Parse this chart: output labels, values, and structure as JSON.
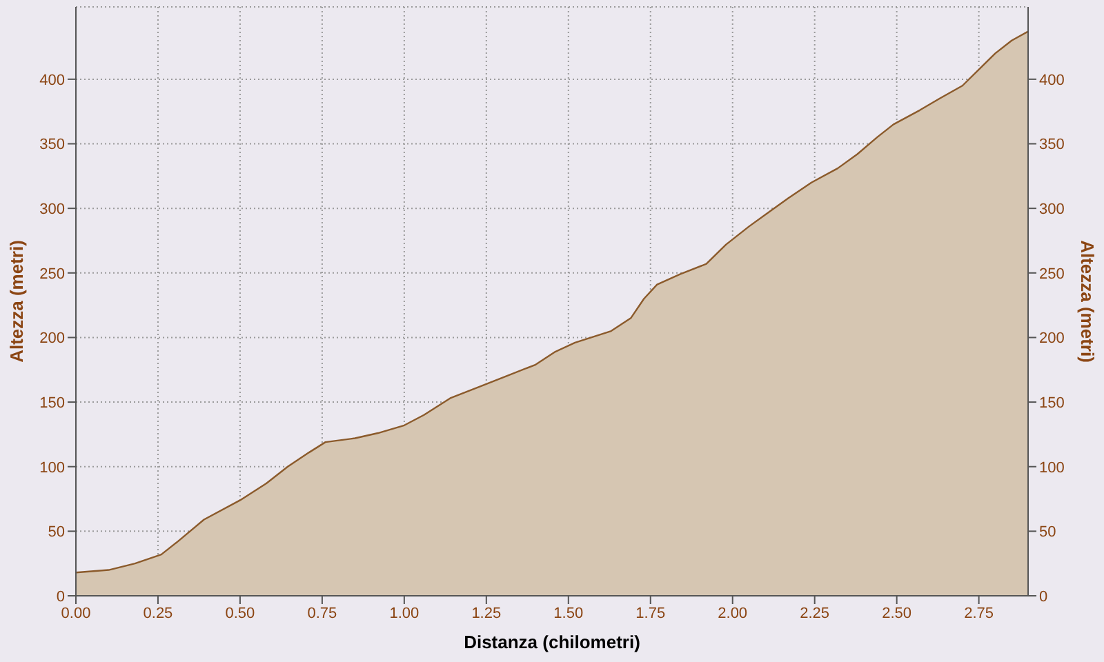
{
  "chart_data": {
    "type": "area",
    "xlabel": "Distanza (chilometri)",
    "ylabel": "Altezza (metri)",
    "y2label": "Altezza (metri)",
    "x": [
      0,
      0.1,
      0.18,
      0.26,
      0.31,
      0.39,
      0.5,
      0.58,
      0.645,
      0.71,
      0.76,
      0.85,
      0.92,
      1.0,
      1.06,
      1.14,
      1.23,
      1.31,
      1.4,
      1.46,
      1.52,
      1.63,
      1.69,
      1.73,
      1.77,
      1.84,
      1.92,
      1.98,
      2.05,
      2.11,
      2.17,
      2.24,
      2.32,
      2.38,
      2.44,
      2.49,
      2.57,
      2.63,
      2.7,
      2.76,
      2.8,
      2.85,
      2.9
    ],
    "series": [
      {
        "color": "#8b5a2b",
        "values": [
          18,
          20,
          25,
          32,
          42,
          59,
          74,
          87,
          100,
          111,
          119,
          122,
          126,
          132,
          140,
          153,
          162,
          170,
          179,
          189,
          196,
          205,
          215,
          230,
          241,
          249,
          257,
          272,
          286,
          297,
          308,
          320,
          331,
          342,
          355,
          365,
          376,
          385,
          395,
          410,
          420,
          430,
          437
        ]
      }
    ],
    "xlim": [
      0,
      2.9
    ],
    "xticks": [
      {
        "value": 0,
        "label": "0.00"
      },
      {
        "value": 0.25,
        "label": "0.25"
      },
      {
        "value": 0.5,
        "label": "0.50"
      },
      {
        "value": 0.75,
        "label": "0.75"
      },
      {
        "value": 1,
        "label": "1.00"
      },
      {
        "value": 1.25,
        "label": "1.25"
      },
      {
        "value": 1.5,
        "label": "1.50"
      },
      {
        "value": 1.75,
        "label": "1.75"
      },
      {
        "value": 2,
        "label": "2.00"
      },
      {
        "value": 2.25,
        "label": "2.25"
      },
      {
        "value": 2.5,
        "label": "2.50"
      },
      {
        "value": 2.75,
        "label": "2.75"
      }
    ],
    "ylim": [
      0,
      456
    ],
    "yticks": [
      0,
      50,
      100,
      150,
      200,
      250,
      300,
      350,
      400
    ],
    "y2lim": [
      0,
      456
    ],
    "y2ticks": [
      0,
      50,
      100,
      150,
      200,
      250,
      300,
      350,
      400
    ],
    "grid": true,
    "legend": false,
    "marker": "none",
    "line_style": "solid"
  }
}
